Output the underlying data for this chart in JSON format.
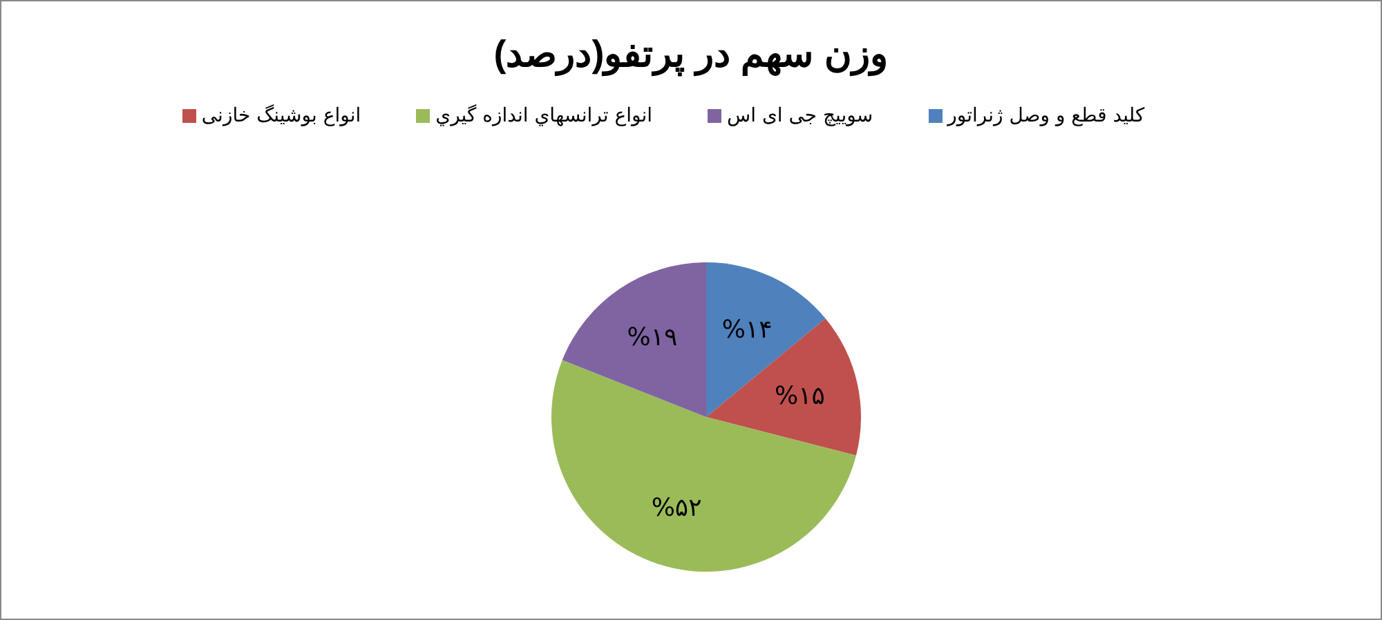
{
  "chart_data": {
    "type": "pie",
    "title": "وزن سهم در پرتفو(درصد)",
    "categories": [
      "کلید قطع و وصل ژنراتور",
      "انواع بوشینگ خازنی",
      "انواع ترانسهاي اندازه گيري",
      "سوییچ جی ای اس"
    ],
    "values": [
      14,
      15,
      52,
      19
    ],
    "colors": [
      "#4f81bd",
      "#c0504d",
      "#9bbb59",
      "#8064a2"
    ],
    "value_labels": [
      "%۱۴",
      "%۱۵",
      "%۵۲",
      "%۱۹"
    ],
    "legend": "top"
  }
}
